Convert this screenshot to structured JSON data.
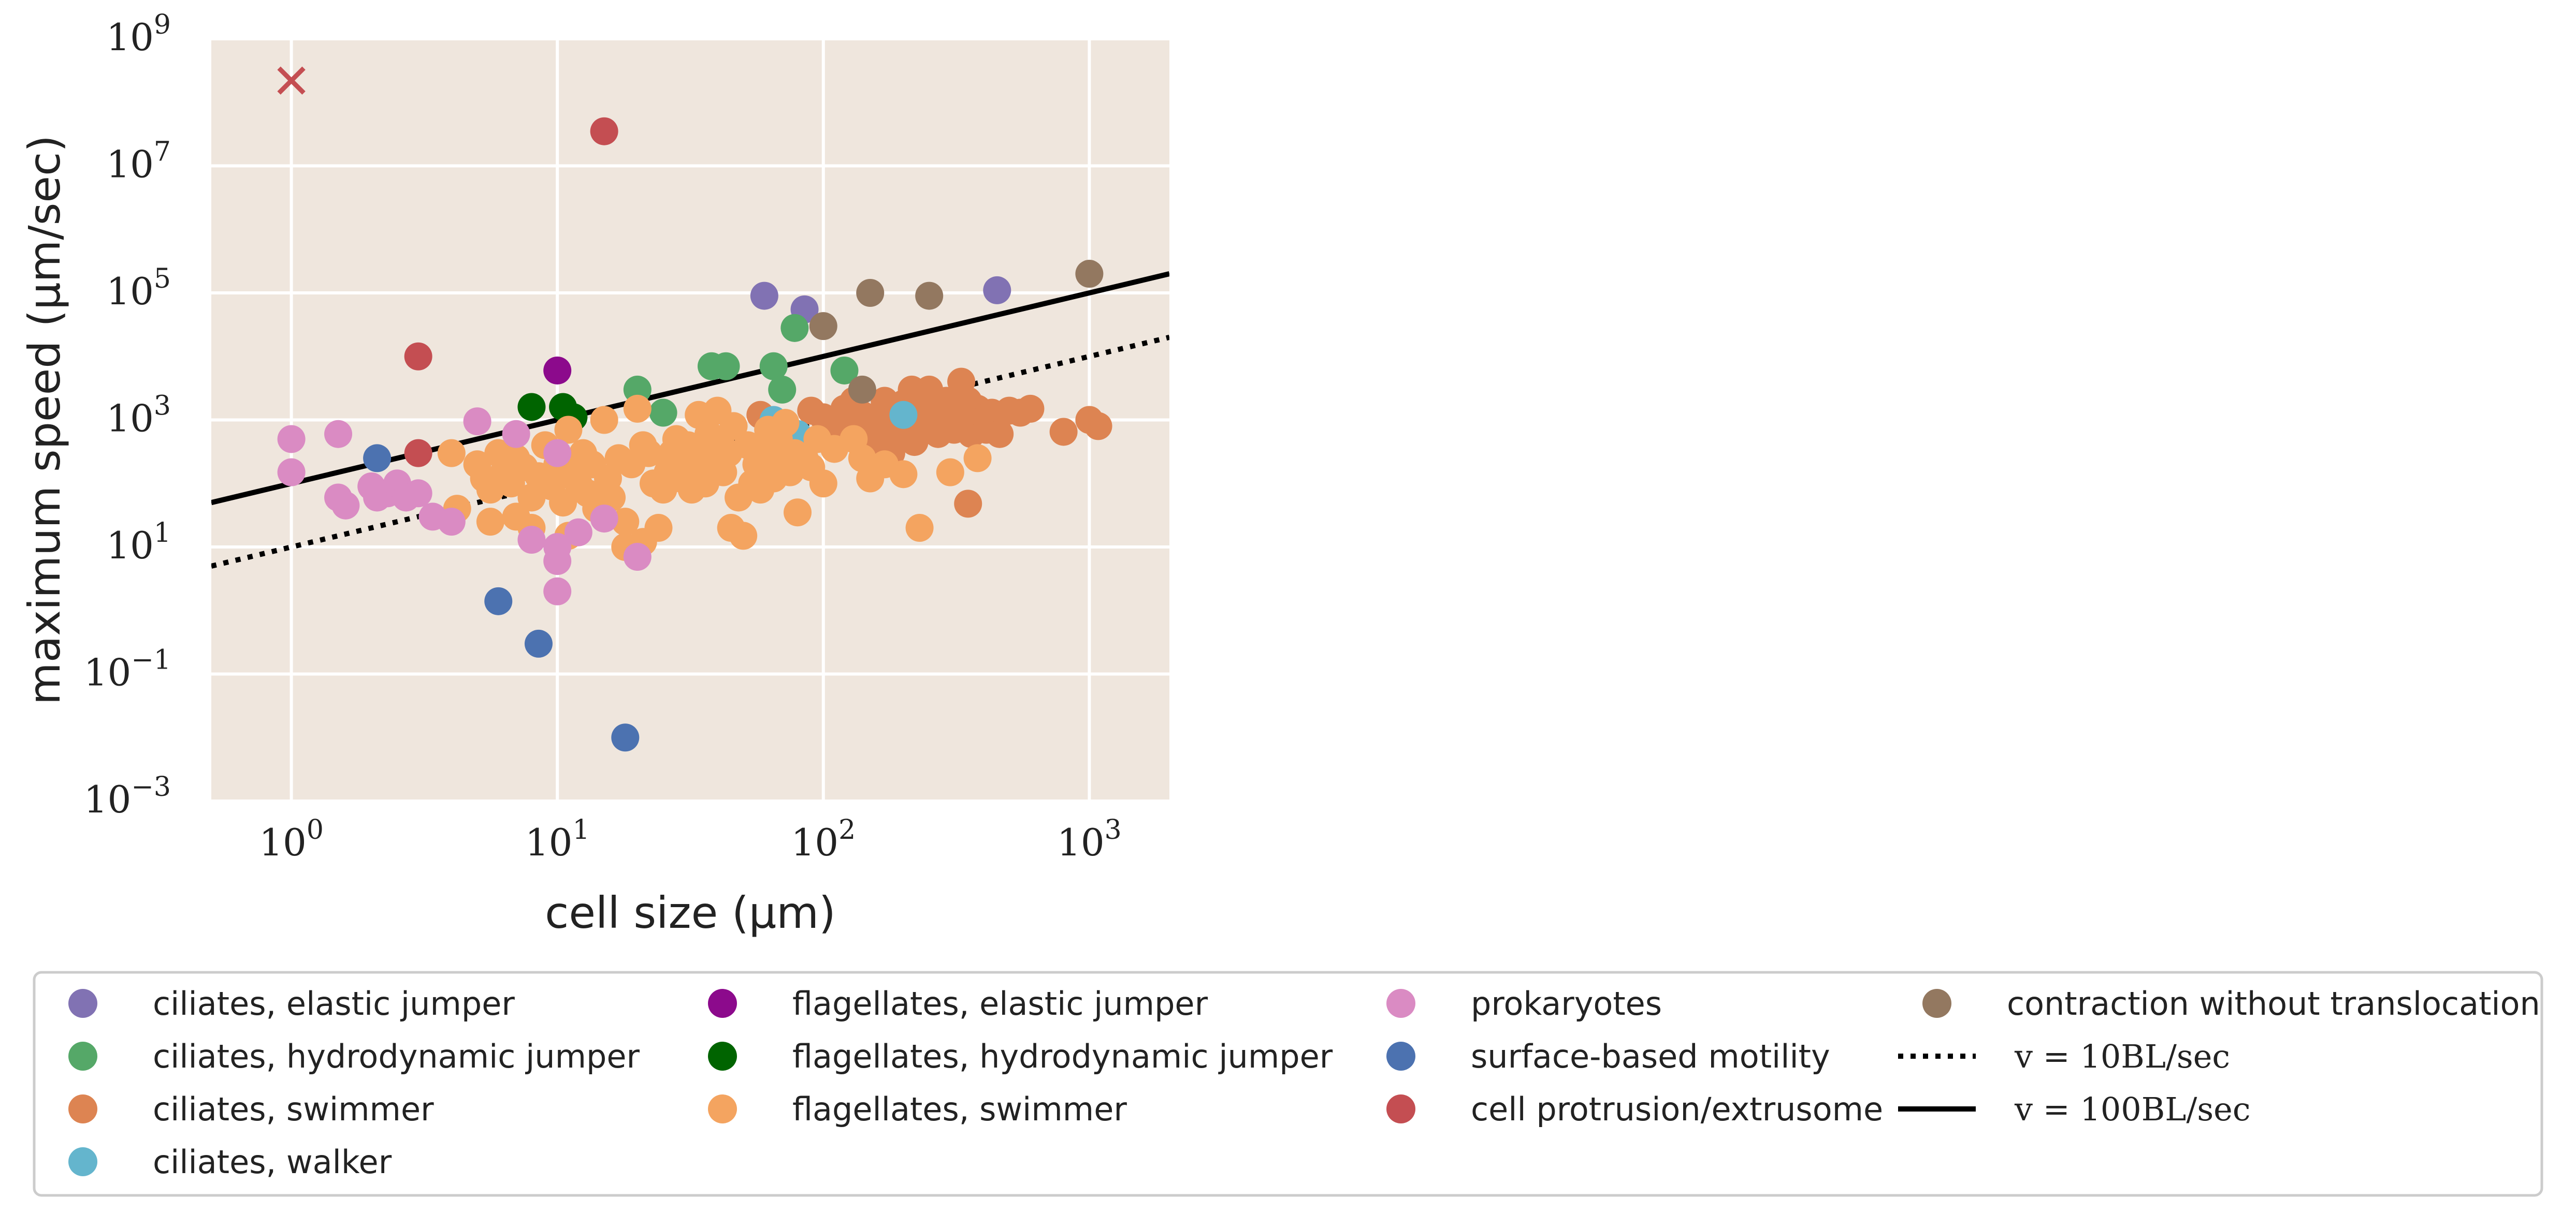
{
  "chart_data": {
    "type": "scatter",
    "title": "",
    "xlabel": "cell size (μm)",
    "ylabel": "maximum speed (μm/sec)",
    "xscale": "log",
    "yscale": "log",
    "xlim": [
      0.5,
      2000
    ],
    "ylim": [
      0.001,
      1000000000
    ],
    "x_ticks": [
      {
        "base": "10",
        "exp": "0",
        "value": 1
      },
      {
        "base": "10",
        "exp": "1",
        "value": 10
      },
      {
        "base": "10",
        "exp": "2",
        "value": 100
      },
      {
        "base": "10",
        "exp": "3",
        "value": 1000
      }
    ],
    "y_ticks": [
      {
        "base": "10",
        "exp": "−3",
        "value": 0.001
      },
      {
        "base": "10",
        "exp": "−1",
        "value": 0.1
      },
      {
        "base": "10",
        "exp": "1",
        "value": 10
      },
      {
        "base": "10",
        "exp": "3",
        "value": 1000
      },
      {
        "base": "10",
        "exp": "5",
        "value": 100000
      },
      {
        "base": "10",
        "exp": "7",
        "value": 10000000
      },
      {
        "base": "10",
        "exp": "9",
        "value": 1000000000
      }
    ],
    "grid": true,
    "background": "#efe6dd",
    "legend_position": "bottom",
    "series": [
      {
        "name": "ciliates, elastic jumper",
        "color": "#8172b3",
        "marker": "circle",
        "points": [
          [
            60,
            90000
          ],
          [
            85,
            55000
          ],
          [
            450,
            110000
          ]
        ]
      },
      {
        "name": "ciliates, hydrodynamic jumper",
        "color": "#55a868",
        "marker": "circle",
        "points": [
          [
            20,
            3000
          ],
          [
            25,
            1300
          ],
          [
            38,
            7000
          ],
          [
            43,
            7000
          ],
          [
            65,
            7000
          ],
          [
            70,
            3000
          ],
          [
            78,
            28000
          ],
          [
            120,
            6000
          ]
        ]
      },
      {
        "name": "ciliates, swimmer",
        "color": "#dd8452",
        "marker": "circle",
        "points": [
          [
            58,
            1200
          ],
          [
            90,
            1400
          ],
          [
            100,
            1100
          ],
          [
            110,
            900
          ],
          [
            115,
            600
          ],
          [
            120,
            1500
          ],
          [
            125,
            1000
          ],
          [
            130,
            2000
          ],
          [
            140,
            1200
          ],
          [
            145,
            700
          ],
          [
            150,
            500
          ],
          [
            155,
            900
          ],
          [
            160,
            400
          ],
          [
            165,
            1300
          ],
          [
            170,
            2000
          ],
          [
            175,
            1500
          ],
          [
            180,
            900
          ],
          [
            190,
            600
          ],
          [
            200,
            1800
          ],
          [
            210,
            1200
          ],
          [
            215,
            3000
          ],
          [
            220,
            700
          ],
          [
            230,
            2000
          ],
          [
            240,
            1000
          ],
          [
            250,
            3000
          ],
          [
            260,
            900
          ],
          [
            270,
            600
          ],
          [
            280,
            1500
          ],
          [
            290,
            2000
          ],
          [
            300,
            1000
          ],
          [
            310,
            700
          ],
          [
            320,
            1200
          ],
          [
            330,
            4000
          ],
          [
            340,
            800
          ],
          [
            350,
            2000
          ],
          [
            360,
            600
          ],
          [
            380,
            1500
          ],
          [
            400,
            1000
          ],
          [
            410,
            700
          ],
          [
            430,
            1300
          ],
          [
            450,
            1000
          ],
          [
            460,
            600
          ],
          [
            500,
            1400
          ],
          [
            550,
            1300
          ],
          [
            600,
            1500
          ],
          [
            800,
            650
          ],
          [
            1000,
            1000
          ],
          [
            1080,
            800
          ],
          [
            350,
            48
          ],
          [
            220,
            450
          ],
          [
            180,
            300
          ]
        ]
      },
      {
        "name": "ciliates, walker",
        "color": "#64b5cd",
        "marker": "circle",
        "points": [
          [
            65,
            1000
          ],
          [
            80,
            600
          ],
          [
            200,
            1200
          ]
        ]
      },
      {
        "name": "flagellates, elastic jumper",
        "color": "#8c0a8c",
        "marker": "circle",
        "points": [
          [
            10,
            6000
          ]
        ]
      },
      {
        "name": "flagellates, hydrodynamic jumper",
        "color": "#006400",
        "marker": "circle",
        "points": [
          [
            8,
            1600
          ],
          [
            10.5,
            1600
          ],
          [
            11.5,
            1100
          ]
        ]
      },
      {
        "name": "flagellates, swimmer",
        "color": "#f4a460",
        "marker": "circle",
        "points": [
          [
            4,
            300
          ],
          [
            4.2,
            40
          ],
          [
            5,
            200
          ],
          [
            5.3,
            120
          ],
          [
            5.6,
            80
          ],
          [
            6,
            300
          ],
          [
            6.3,
            150
          ],
          [
            6.7,
            100
          ],
          [
            7,
            250
          ],
          [
            7.5,
            180
          ],
          [
            8,
            60
          ],
          [
            8.5,
            130
          ],
          [
            9,
            400
          ],
          [
            9.5,
            90
          ],
          [
            10,
            200
          ],
          [
            10.5,
            50
          ],
          [
            11,
            700
          ],
          [
            11.5,
            150
          ],
          [
            12,
            100
          ],
          [
            12.5,
            300
          ],
          [
            13,
            70
          ],
          [
            13.5,
            200
          ],
          [
            14,
            40
          ],
          [
            15,
            1000
          ],
          [
            15.5,
            120
          ],
          [
            16,
            60
          ],
          [
            17,
            250
          ],
          [
            18,
            10
          ],
          [
            19,
            200
          ],
          [
            20,
            1500
          ],
          [
            21,
            400
          ],
          [
            22,
            300
          ],
          [
            23,
            100
          ],
          [
            24,
            20
          ],
          [
            25,
            80
          ],
          [
            26,
            150
          ],
          [
            27,
            300
          ],
          [
            28,
            500
          ],
          [
            29,
            120
          ],
          [
            30,
            200
          ],
          [
            31,
            400
          ],
          [
            32,
            80
          ],
          [
            33,
            150
          ],
          [
            34,
            1200
          ],
          [
            35,
            300
          ],
          [
            36,
            100
          ],
          [
            37,
            600
          ],
          [
            38,
            200
          ],
          [
            40,
            1400
          ],
          [
            41,
            500
          ],
          [
            42,
            150
          ],
          [
            44,
            300
          ],
          [
            45,
            20
          ],
          [
            46,
            800
          ],
          [
            48,
            60
          ],
          [
            50,
            15
          ],
          [
            52,
            400
          ],
          [
            54,
            100
          ],
          [
            56,
            200
          ],
          [
            58,
            80
          ],
          [
            60,
            300
          ],
          [
            62,
            700
          ],
          [
            65,
            120
          ],
          [
            68,
            500
          ],
          [
            70,
            200
          ],
          [
            72,
            900
          ],
          [
            75,
            150
          ],
          [
            78,
            300
          ],
          [
            80,
            35
          ],
          [
            85,
            250
          ],
          [
            90,
            180
          ],
          [
            95,
            500
          ],
          [
            100,
            100
          ],
          [
            110,
            350
          ],
          [
            130,
            500
          ],
          [
            140,
            250
          ],
          [
            150,
            120
          ],
          [
            170,
            200
          ],
          [
            200,
            140
          ],
          [
            230,
            20
          ],
          [
            300,
            150
          ],
          [
            380,
            250
          ],
          [
            7,
            30
          ],
          [
            5.6,
            25
          ],
          [
            8,
            20
          ],
          [
            11,
            15
          ],
          [
            18,
            25
          ],
          [
            21,
            12
          ]
        ]
      },
      {
        "name": "prokaryotes",
        "color": "#da8bc3",
        "marker": "circle",
        "points": [
          [
            1,
            500
          ],
          [
            1,
            150
          ],
          [
            1.5,
            600
          ],
          [
            1.5,
            60
          ],
          [
            1.6,
            45
          ],
          [
            2,
            90
          ],
          [
            2.1,
            60
          ],
          [
            2.3,
            70
          ],
          [
            2.5,
            100
          ],
          [
            2.7,
            60
          ],
          [
            3,
            70
          ],
          [
            3.4,
            30
          ],
          [
            4,
            25
          ],
          [
            5,
            950
          ],
          [
            7,
            600
          ],
          [
            8,
            13
          ],
          [
            10,
            10
          ],
          [
            10,
            6
          ],
          [
            10,
            2
          ],
          [
            12,
            17
          ],
          [
            15,
            28
          ],
          [
            20,
            7
          ],
          [
            10,
            300
          ]
        ]
      },
      {
        "name": "surface-based motility",
        "color": "#4c72b0",
        "marker": "circle",
        "points": [
          [
            2.1,
            250
          ],
          [
            6,
            1.4
          ],
          [
            8.5,
            0.3
          ],
          [
            18,
            0.01
          ]
        ]
      },
      {
        "name": "cell protrusion/extrusome",
        "color": "#c44e52",
        "marker": "circle",
        "points": [
          [
            3,
            10000
          ],
          [
            3,
            300
          ],
          [
            15,
            35000000
          ]
        ]
      },
      {
        "name": "cell protrusion/extrusome (outlier)",
        "color": "#c44e52",
        "marker": "x",
        "legend": false,
        "points": [
          [
            1,
            220000000
          ]
        ]
      },
      {
        "name": "contraction without translocation",
        "color": "#937860",
        "marker": "circle",
        "points": [
          [
            100,
            30000
          ],
          [
            150,
            100000
          ],
          [
            250,
            90000
          ],
          [
            140,
            3000
          ],
          [
            1000,
            200000
          ]
        ]
      }
    ],
    "lines": [
      {
        "name": "v = 10BL/sec",
        "legend_math": "v = 10BL/sec",
        "style": "dotted",
        "color": "#000000",
        "factor": 10
      },
      {
        "name": "v = 100BL/sec",
        "legend_math": "v = 100BL/sec",
        "style": "solid",
        "color": "#000000",
        "factor": 100
      }
    ],
    "legend": {
      "columns": [
        [
          {
            "label": "ciliates, elastic jumper",
            "color": "#8172b3",
            "kind": "marker"
          },
          {
            "label": "ciliates, hydrodynamic jumper",
            "color": "#55a868",
            "kind": "marker"
          },
          {
            "label": "ciliates, swimmer",
            "color": "#dd8452",
            "kind": "marker"
          },
          {
            "label": "ciliates, walker",
            "color": "#64b5cd",
            "kind": "marker"
          }
        ],
        [
          {
            "label": "flagellates, elastic jumper",
            "color": "#8c0a8c",
            "kind": "marker"
          },
          {
            "label": "flagellates, hydrodynamic jumper",
            "color": "#006400",
            "kind": "marker"
          },
          {
            "label": "flagellates, swimmer",
            "color": "#f4a460",
            "kind": "marker"
          }
        ],
        [
          {
            "label": "prokaryotes",
            "color": "#da8bc3",
            "kind": "marker"
          },
          {
            "label": "surface-based motility",
            "color": "#4c72b0",
            "kind": "marker"
          },
          {
            "label": "cell protrusion/extrusome",
            "color": "#c44e52",
            "kind": "marker"
          }
        ],
        [
          {
            "label": "contraction without translocation",
            "color": "#937860",
            "kind": "marker"
          },
          {
            "label": "v = 10BL/sec",
            "color": "#000000",
            "kind": "dotted"
          },
          {
            "label": "v = 100BL/sec",
            "color": "#000000",
            "kind": "solid"
          }
        ]
      ]
    }
  }
}
